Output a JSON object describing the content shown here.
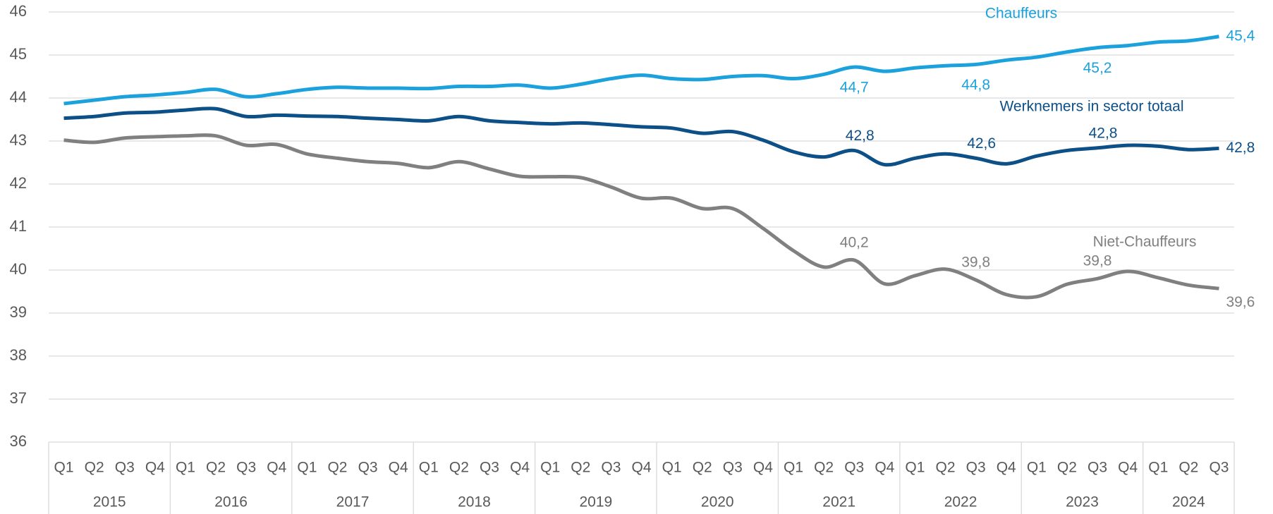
{
  "chart_data": {
    "type": "line",
    "categories": [
      {
        "quarter": "Q1",
        "year": "2015"
      },
      {
        "quarter": "Q2",
        "year": "2015"
      },
      {
        "quarter": "Q3",
        "year": "2015"
      },
      {
        "quarter": "Q4",
        "year": "2015"
      },
      {
        "quarter": "Q1",
        "year": "2016"
      },
      {
        "quarter": "Q2",
        "year": "2016"
      },
      {
        "quarter": "Q3",
        "year": "2016"
      },
      {
        "quarter": "Q4",
        "year": "2016"
      },
      {
        "quarter": "Q1",
        "year": "2017"
      },
      {
        "quarter": "Q2",
        "year": "2017"
      },
      {
        "quarter": "Q3",
        "year": "2017"
      },
      {
        "quarter": "Q4",
        "year": "2017"
      },
      {
        "quarter": "Q1",
        "year": "2018"
      },
      {
        "quarter": "Q2",
        "year": "2018"
      },
      {
        "quarter": "Q3",
        "year": "2018"
      },
      {
        "quarter": "Q4",
        "year": "2018"
      },
      {
        "quarter": "Q1",
        "year": "2019"
      },
      {
        "quarter": "Q2",
        "year": "2019"
      },
      {
        "quarter": "Q3",
        "year": "2019"
      },
      {
        "quarter": "Q4",
        "year": "2019"
      },
      {
        "quarter": "Q1",
        "year": "2020"
      },
      {
        "quarter": "Q2",
        "year": "2020"
      },
      {
        "quarter": "Q3",
        "year": "2020"
      },
      {
        "quarter": "Q4",
        "year": "2020"
      },
      {
        "quarter": "Q1",
        "year": "2021"
      },
      {
        "quarter": "Q2",
        "year": "2021"
      },
      {
        "quarter": "Q3",
        "year": "2021"
      },
      {
        "quarter": "Q4",
        "year": "2021"
      },
      {
        "quarter": "Q1",
        "year": "2022"
      },
      {
        "quarter": "Q2",
        "year": "2022"
      },
      {
        "quarter": "Q3",
        "year": "2022"
      },
      {
        "quarter": "Q4",
        "year": "2022"
      },
      {
        "quarter": "Q1",
        "year": "2023"
      },
      {
        "quarter": "Q2",
        "year": "2023"
      },
      {
        "quarter": "Q3",
        "year": "2023"
      },
      {
        "quarter": "Q4",
        "year": "2023"
      },
      {
        "quarter": "Q1",
        "year": "2024"
      },
      {
        "quarter": "Q2",
        "year": "2024"
      },
      {
        "quarter": "Q3",
        "year": "2024"
      }
    ],
    "series": [
      {
        "name": "Chauffeurs",
        "color": "#1ba1dc",
        "values": [
          43.87,
          43.95,
          44.03,
          44.07,
          44.13,
          44.2,
          44.03,
          44.1,
          44.2,
          44.25,
          44.23,
          44.23,
          44.22,
          44.27,
          44.27,
          44.3,
          44.23,
          44.32,
          44.45,
          44.53,
          44.45,
          44.43,
          44.5,
          44.52,
          44.45,
          44.55,
          44.72,
          44.62,
          44.7,
          44.75,
          44.78,
          44.88,
          44.95,
          45.07,
          45.17,
          45.22,
          45.3,
          45.33,
          45.43
        ],
        "value_labels": [
          null,
          null,
          null,
          null,
          null,
          null,
          null,
          null,
          null,
          null,
          null,
          null,
          null,
          null,
          null,
          null,
          null,
          null,
          null,
          null,
          null,
          null,
          null,
          null,
          null,
          null,
          "44,7",
          null,
          null,
          null,
          "44,8",
          null,
          null,
          null,
          "45,2",
          null,
          null,
          null,
          "45,4"
        ]
      },
      {
        "name": "Werknemers in sector totaal",
        "color": "#0d4f87",
        "values": [
          43.53,
          43.57,
          43.65,
          43.67,
          43.72,
          43.75,
          43.57,
          43.6,
          43.58,
          43.57,
          43.53,
          43.5,
          43.47,
          43.57,
          43.47,
          43.43,
          43.4,
          43.42,
          43.38,
          43.33,
          43.3,
          43.18,
          43.22,
          43.02,
          42.75,
          42.63,
          42.78,
          42.45,
          42.6,
          42.7,
          42.6,
          42.47,
          42.65,
          42.78,
          42.84,
          42.9,
          42.88,
          42.8,
          42.83
        ],
        "value_labels": [
          null,
          null,
          null,
          null,
          null,
          null,
          null,
          null,
          null,
          null,
          null,
          null,
          null,
          null,
          null,
          null,
          null,
          null,
          null,
          null,
          null,
          null,
          null,
          null,
          null,
          null,
          "42,8",
          null,
          null,
          null,
          "42,6",
          null,
          null,
          null,
          "42,8",
          null,
          null,
          null,
          "42,8"
        ]
      },
      {
        "name": "Niet-Chauffeurs",
        "color": "#808080",
        "values": [
          43.02,
          42.97,
          43.07,
          43.1,
          43.12,
          43.12,
          42.9,
          42.92,
          42.7,
          42.6,
          42.52,
          42.48,
          42.38,
          42.52,
          42.35,
          42.18,
          42.17,
          42.15,
          41.93,
          41.67,
          41.67,
          41.43,
          41.43,
          40.97,
          40.45,
          40.07,
          40.23,
          39.68,
          39.87,
          40.02,
          39.77,
          39.43,
          39.38,
          39.67,
          39.8,
          39.97,
          39.82,
          39.65,
          39.57
        ],
        "value_labels": [
          null,
          null,
          null,
          null,
          null,
          null,
          null,
          null,
          null,
          null,
          null,
          null,
          null,
          null,
          null,
          null,
          null,
          null,
          null,
          null,
          null,
          null,
          null,
          null,
          null,
          null,
          "40,2",
          null,
          null,
          null,
          "39,8",
          null,
          null,
          null,
          "39,8",
          null,
          null,
          null,
          "39,6"
        ]
      }
    ],
    "ylim": [
      36,
      46
    ],
    "yticks": [
      36,
      37,
      38,
      39,
      40,
      41,
      42,
      43,
      44,
      45,
      46
    ],
    "grid": true
  }
}
